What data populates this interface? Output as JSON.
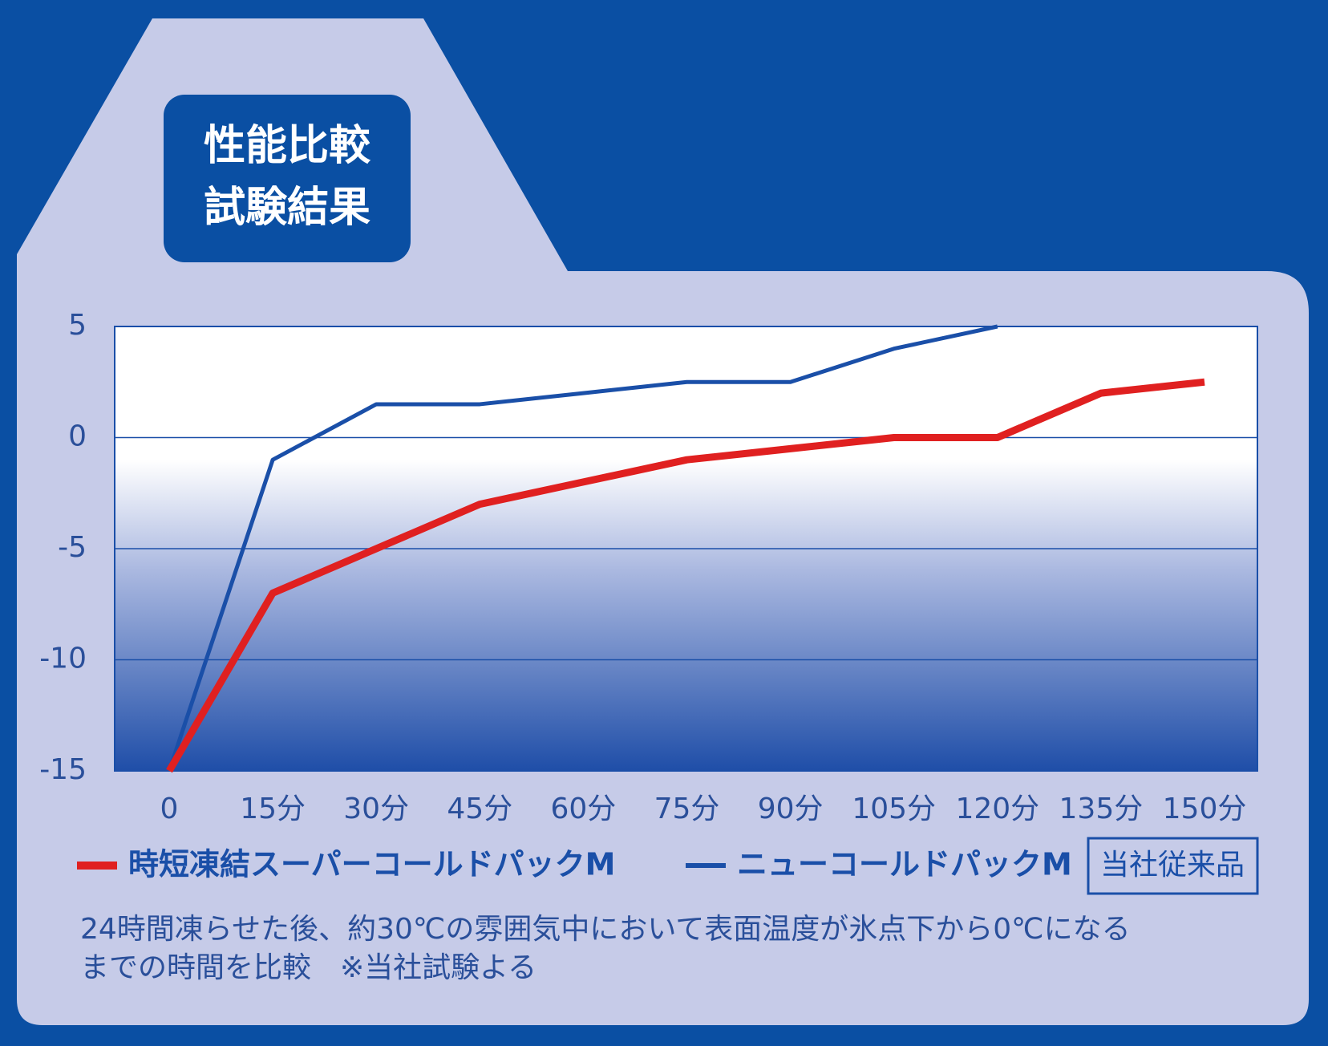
{
  "chart_data": {
    "type": "line",
    "title_lines": [
      "性能比較",
      "試験結果"
    ],
    "categories": [
      "0",
      "15分",
      "30分",
      "45分",
      "60分",
      "75分",
      "90分",
      "105分",
      "120分",
      "135分",
      "150分"
    ],
    "series": [
      {
        "name": "時短凍結スーパーコールドパックM",
        "color": "#e02020",
        "values": [
          -15,
          -7,
          -5,
          -3,
          -2,
          -1,
          -0.5,
          0,
          0,
          2,
          2.5
        ]
      },
      {
        "name": "ニューコールドパックM",
        "color": "#1a4fa8",
        "values": [
          -15,
          -1,
          1.5,
          1.5,
          2,
          2.5,
          2.5,
          4,
          5,
          null,
          null
        ]
      }
    ],
    "annotation": "当社従来品",
    "note": [
      "24時間凍らせた後、約30℃の雰囲気中において表面温度が氷点下から0℃になる",
      "までの時間を比較　※当社試験よる"
    ],
    "ylim": [
      -15,
      5
    ],
    "yticks": [
      -15,
      -10,
      -5,
      0,
      5
    ],
    "grid": true
  }
}
